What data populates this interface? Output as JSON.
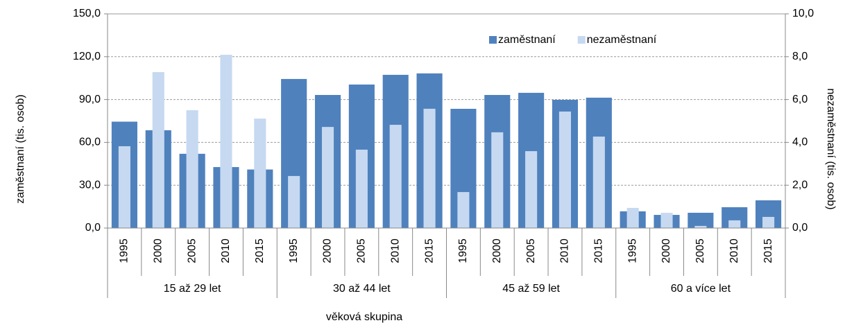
{
  "chart_data": {
    "type": "bar",
    "y_label": "zaměstnaní (tis. osob)",
    "y2_label": "nezaměstnaní (tis. osob)",
    "x_label": "věková skupina",
    "groups": [
      "15 až 29 let",
      "30 až 44 let",
      "45 až 59 let",
      "60 a více let"
    ],
    "categories": [
      "1995",
      "2000",
      "2005",
      "2010",
      "2015",
      "1995",
      "2000",
      "2005",
      "2010",
      "2015",
      "1995",
      "2000",
      "2005",
      "2010",
      "2015",
      "1995",
      "2000",
      "2005",
      "2010",
      "2015"
    ],
    "series": [
      {
        "name": "zaměstnaní",
        "color": "#4f81bd",
        "axis": "y",
        "values": [
          74.5,
          68.5,
          52,
          42.7,
          41,
          104.4,
          93.2,
          100.5,
          107.3,
          108.3,
          83.5,
          93.2,
          94.7,
          89.8,
          91.3,
          11.7,
          9.2,
          10.7,
          14.6,
          19.4
        ]
      },
      {
        "name": "nezaměstnaní",
        "color": "#c6d9f1",
        "axis": "y2",
        "values": [
          3.82,
          7.28,
          5.5,
          8.09,
          5.11,
          2.43,
          4.72,
          3.66,
          4.82,
          5.57,
          1.68,
          4.47,
          3.59,
          5.44,
          4.27,
          0.94,
          0.71,
          0.1,
          0.36,
          0.52
        ]
      }
    ],
    "ylim": [
      0,
      150
    ],
    "yticks": [
      {
        "value": 0,
        "label": "0,0"
      },
      {
        "value": 30,
        "label": "30,0"
      },
      {
        "value": 60,
        "label": "60,0"
      },
      {
        "value": 90,
        "label": "90,0"
      },
      {
        "value": 120,
        "label": "120,0"
      },
      {
        "value": 150,
        "label": "150,0"
      }
    ],
    "y2lim": [
      0,
      10
    ],
    "y2ticks": [
      {
        "value": 0,
        "label": "0,0"
      },
      {
        "value": 2,
        "label": "2,0"
      },
      {
        "value": 4,
        "label": "4,0"
      },
      {
        "value": 6,
        "label": "6,0"
      },
      {
        "value": 8,
        "label": "8,0"
      },
      {
        "value": 10,
        "label": "10,0"
      }
    ],
    "grid": true,
    "legend": "top-right"
  }
}
